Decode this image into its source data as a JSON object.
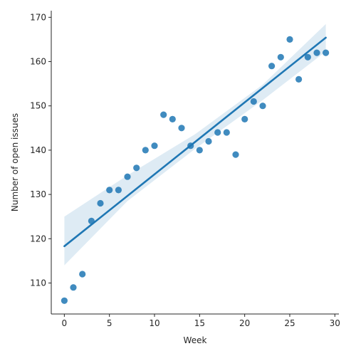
{
  "chart_data": {
    "type": "scatter",
    "xlabel": "Week",
    "ylabel": "Number of open issues",
    "xlim": [
      -1.45,
      30.45
    ],
    "ylim": [
      103,
      171.5
    ],
    "xticks": [
      0,
      5,
      10,
      15,
      20,
      25,
      30
    ],
    "yticks": [
      110,
      120,
      130,
      140,
      150,
      160,
      170
    ],
    "grid": false,
    "point_color": "#1f77b4",
    "line_color": "#1f77b4",
    "band_color": "#1f77b4",
    "points": [
      {
        "x": 0,
        "y": 106
      },
      {
        "x": 1,
        "y": 109
      },
      {
        "x": 2,
        "y": 112
      },
      {
        "x": 3,
        "y": 124
      },
      {
        "x": 4,
        "y": 128
      },
      {
        "x": 5,
        "y": 131
      },
      {
        "x": 6,
        "y": 131
      },
      {
        "x": 7,
        "y": 134
      },
      {
        "x": 8,
        "y": 136
      },
      {
        "x": 9,
        "y": 140
      },
      {
        "x": 10,
        "y": 141
      },
      {
        "x": 11,
        "y": 148
      },
      {
        "x": 12,
        "y": 147
      },
      {
        "x": 13,
        "y": 145
      },
      {
        "x": 14,
        "y": 141
      },
      {
        "x": 15,
        "y": 140
      },
      {
        "x": 16,
        "y": 142
      },
      {
        "x": 17,
        "y": 144
      },
      {
        "x": 18,
        "y": 144
      },
      {
        "x": 19,
        "y": 139
      },
      {
        "x": 20,
        "y": 147
      },
      {
        "x": 21,
        "y": 151
      },
      {
        "x": 22,
        "y": 150
      },
      {
        "x": 23,
        "y": 159
      },
      {
        "x": 24,
        "y": 161
      },
      {
        "x": 25,
        "y": 165
      },
      {
        "x": 26,
        "y": 156
      },
      {
        "x": 27,
        "y": 161
      },
      {
        "x": 28,
        "y": 162
      },
      {
        "x": 29,
        "y": 162
      }
    ],
    "regression": {
      "x": [
        0,
        29
      ],
      "y": [
        118.3,
        165.4
      ],
      "confidence_band": {
        "x": [
          0,
          7,
          14.5,
          22,
          29
        ],
        "lower": [
          114.0,
          128.5,
          140.3,
          151.3,
          162.3
        ],
        "upper": [
          125.0,
          134.3,
          143.6,
          154.8,
          168.5
        ]
      }
    }
  }
}
